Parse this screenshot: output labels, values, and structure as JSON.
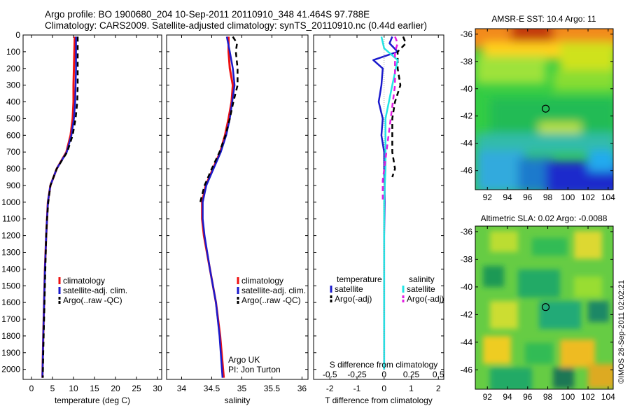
{
  "header": {
    "line1": "Argo profile: BO 1900680_204 10-Sep-2011 20110910_348 41.464S 97.788E",
    "line2": "Climatology: CARS2009. Satellite-adjusted climatology: synTS_20110910.nc (0.44d earlier)"
  },
  "colors": {
    "climatology": "#ee1111",
    "satellite": "#1a1acc",
    "argo": "#000000",
    "sal_satellite": "#22e5e5",
    "sal_argo": "#e21ee2"
  },
  "chart_data": [
    {
      "type": "line",
      "id": "temperature",
      "xlabel": "temperature (deg C)",
      "xticks": [
        "0",
        "5",
        "10",
        "15",
        "20",
        "25",
        "30"
      ],
      "xlim": [
        -2,
        31
      ],
      "yticks": [
        "0",
        "100",
        "200",
        "300",
        "400",
        "500",
        "600",
        "700",
        "800",
        "900",
        "1000",
        "1100",
        "1200",
        "1300",
        "1400",
        "1500",
        "1600",
        "1700",
        "1800",
        "1900",
        "2000"
      ],
      "ylim": [
        2060,
        0
      ],
      "legend": [
        "climatology",
        "satellite-adj. clim.",
        "Argo(..raw -QC)"
      ],
      "series": [
        {
          "key": "climatology",
          "depth": [
            10,
            100,
            200,
            300,
            400,
            500,
            600,
            700,
            800,
            900,
            1000,
            1200,
            1400,
            1600,
            1800,
            2050
          ],
          "values": [
            10.3,
            10.2,
            10.1,
            10.0,
            10.0,
            9.8,
            9.3,
            8.3,
            6.0,
            4.5,
            3.9,
            3.5,
            3.2,
            3.0,
            2.8,
            2.6
          ]
        },
        {
          "key": "satellite",
          "depth": [
            10,
            100,
            200,
            300,
            400,
            500,
            600,
            700,
            800,
            900,
            1000,
            1200,
            1400,
            1600,
            1800,
            2050
          ],
          "values": [
            10.6,
            10.6,
            10.6,
            10.5,
            10.4,
            10.1,
            9.5,
            8.4,
            6.0,
            4.5,
            3.9,
            3.5,
            3.2,
            3.0,
            2.8,
            2.6
          ]
        },
        {
          "key": "argo",
          "depth": [
            10,
            100,
            200,
            300,
            400,
            500,
            600,
            700,
            800,
            900,
            1000,
            1100,
            1200,
            1300,
            1400,
            1500,
            1600,
            1700,
            1800,
            1900,
            2050
          ],
          "values": [
            11.0,
            11.0,
            11.0,
            11.0,
            10.9,
            10.5,
            9.8,
            8.5,
            6.0,
            4.5,
            4.0,
            3.7,
            3.5,
            3.4,
            3.3,
            3.2,
            3.1,
            3.0,
            2.9,
            2.8,
            2.7
          ]
        }
      ]
    },
    {
      "type": "line",
      "id": "salinity",
      "xlabel": "salinity",
      "xticks": [
        "34",
        "34.5",
        "35",
        "35.5",
        "36"
      ],
      "xlim": [
        33.75,
        36.1
      ],
      "yticks": [],
      "ylim": [
        2060,
        0
      ],
      "legend": [
        "climatology",
        "satellite-adj. clim.",
        "Argo(..raw -QC)"
      ],
      "annotation": [
        "Argo UK",
        "PI: Jon Turton"
      ],
      "series": [
        {
          "key": "climatology",
          "depth": [
            10,
            100,
            200,
            300,
            400,
            500,
            600,
            700,
            800,
            900,
            1000,
            1100,
            1200,
            1400,
            1600,
            1800,
            2050
          ],
          "values": [
            34.78,
            34.78,
            34.8,
            34.85,
            34.83,
            34.78,
            34.72,
            34.64,
            34.52,
            34.4,
            34.34,
            34.34,
            34.37,
            34.47,
            34.57,
            34.64,
            34.7
          ]
        },
        {
          "key": "satellite",
          "depth": [
            10,
            100,
            200,
            300,
            400,
            500,
            600,
            700,
            800,
            900,
            1000,
            1100,
            1200,
            1400,
            1600,
            1800,
            2050
          ],
          "values": [
            34.75,
            34.8,
            34.85,
            34.88,
            34.84,
            34.8,
            34.74,
            34.65,
            34.53,
            34.41,
            34.35,
            34.35,
            34.38,
            34.47,
            34.57,
            34.63,
            34.68
          ]
        },
        {
          "key": "argo",
          "depth": [
            10,
            50,
            100,
            200,
            300,
            400,
            500,
            600,
            700,
            800,
            900,
            1000
          ],
          "values": [
            34.85,
            34.92,
            34.9,
            34.93,
            34.93,
            34.86,
            34.8,
            34.73,
            34.63,
            34.5,
            34.38,
            34.31
          ]
        }
      ]
    },
    {
      "type": "line",
      "id": "differences",
      "xlabel": "T difference from climatology",
      "xlabel_top": "S difference from climatology",
      "xticks": [
        "-2",
        "-1",
        "0",
        "1",
        "2"
      ],
      "xlim": [
        -2.6,
        2.2
      ],
      "xticks_s": [
        "-0.5",
        "-0.25",
        "0",
        "0.25",
        "0.5"
      ],
      "yticks": [],
      "ylim": [
        2060,
        0
      ],
      "legend_left_title": "temperature",
      "legend_left": [
        "satellite",
        "Argo(-adj)"
      ],
      "legend_right_title": "salinity",
      "legend_right": [
        "satellite",
        "Argo(-adj)"
      ],
      "series": [
        {
          "key": "satellite",
          "name": "temperature satellite",
          "depth": [
            10,
            50,
            100,
            150,
            200,
            300,
            400,
            500,
            600,
            700,
            800,
            900,
            1000,
            1200,
            1500,
            1800,
            2000
          ],
          "values": [
            0.3,
            0.2,
            0.5,
            -0.4,
            -0.05,
            -0.1,
            -0.2,
            -0.05,
            -0.1,
            0.0,
            0.0,
            0.02,
            0.02,
            0.0,
            0.0,
            0.0,
            0.0
          ]
        },
        {
          "key": "argo",
          "name": "temperature Argo(-adj)",
          "depth": [
            10,
            50,
            100,
            200,
            300,
            400,
            500,
            600,
            700,
            800,
            850
          ],
          "values": [
            0.7,
            0.8,
            0.5,
            0.5,
            0.6,
            0.4,
            0.3,
            0.3,
            0.3,
            0.4,
            0.3
          ]
        },
        {
          "key": "sal_satellite",
          "name": "salinity satellite",
          "depth": [
            10,
            80,
            150,
            300,
            500,
            800,
            1000,
            1500,
            2000
          ],
          "values": [
            -0.1,
            0.0,
            0.5,
            0.3,
            0.05,
            0.05,
            0.0,
            0.0,
            0.0
          ]
        },
        {
          "key": "sal_argo",
          "name": "salinity Argo(-adj)",
          "depth": [
            10,
            50,
            100,
            200,
            300,
            870,
            950,
            990
          ],
          "values": [
            0.4,
            0.5,
            0.4,
            0.4,
            0.4,
            -0.05,
            -0.05,
            -0.05
          ]
        }
      ]
    },
    {
      "type": "heatmap",
      "id": "sst_map",
      "title": "AMSR-E SST: 10.4 Argo: 11",
      "xticks": [
        "92",
        "94",
        "96",
        "98",
        "100",
        "102",
        "104"
      ],
      "xlim": [
        90.8,
        104.5
      ],
      "yticks": [
        "-36",
        "-38",
        "-40",
        "-42",
        "-44",
        "-46"
      ],
      "ylim": [
        -47.4,
        -35.6
      ],
      "marker": {
        "lon": 97.79,
        "lat": -41.46
      }
    },
    {
      "type": "heatmap",
      "id": "sla_map",
      "title": "Altimetric SLA: 0.02 Argo: -0.0088",
      "xticks": [
        "92",
        "94",
        "96",
        "98",
        "100",
        "102",
        "104"
      ],
      "xlim": [
        90.8,
        104.5
      ],
      "yticks": [
        "-36",
        "-38",
        "-40",
        "-42",
        "-44",
        "-46"
      ],
      "ylim": [
        -47.4,
        -35.6
      ],
      "marker": {
        "lon": 97.79,
        "lat": -41.46
      }
    }
  ],
  "side_stamp": "©IMOS 28-Sep-2011 02:02:21"
}
